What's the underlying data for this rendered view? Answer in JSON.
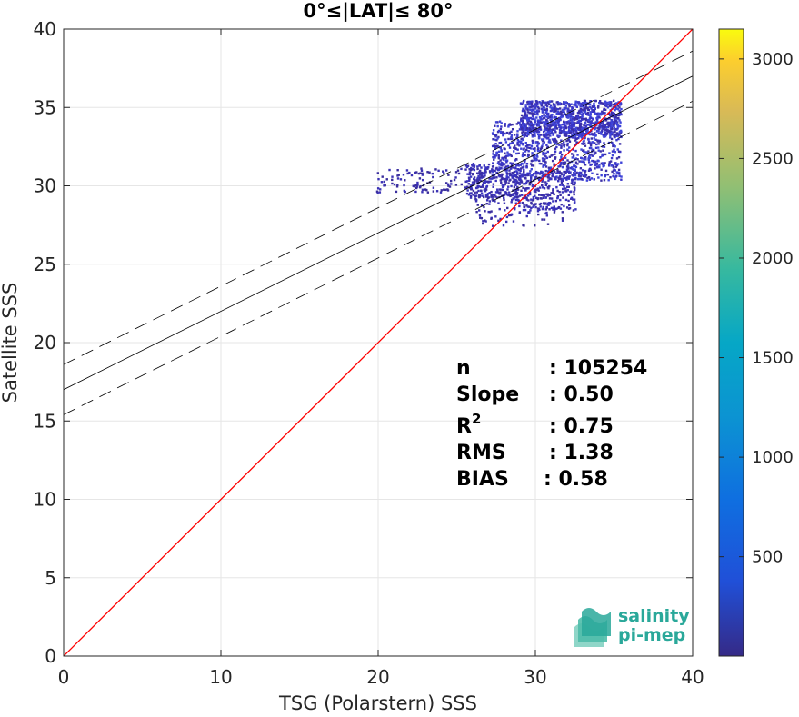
{
  "chart_data": {
    "type": "heatmap",
    "title": "0°≤|LAT|≤ 80°",
    "xlabel": "TSG (Polarstern) SSS",
    "ylabel": "Satellite SSS",
    "xlim": [
      0,
      40
    ],
    "ylim": [
      0,
      40
    ],
    "xticks": [
      0,
      10,
      20,
      30,
      40
    ],
    "yticks": [
      0,
      5,
      10,
      15,
      20,
      25,
      30,
      35,
      40
    ],
    "grid": true,
    "colorbar": {
      "min": 1,
      "max": 3150,
      "ticks": [
        500,
        1000,
        1500,
        2000,
        2500,
        3000
      ],
      "colormap": "parula"
    },
    "lines": {
      "identity": {
        "slope": 1,
        "intercept": 0,
        "color": "#ff0000"
      },
      "fit": {
        "slope": 0.5,
        "intercept": 17.0,
        "color": "#000000"
      },
      "fit_upper": {
        "slope": 0.5,
        "intercept": 18.6,
        "style": "dashed"
      },
      "fit_lower": {
        "slope": 0.5,
        "intercept": 15.4,
        "style": "dashed"
      }
    },
    "density_regions": [
      {
        "x": [
          27.2,
          35.4
        ],
        "y": [
          30.4,
          34.2
        ],
        "density": "high"
      },
      {
        "x": [
          29.0,
          35.4
        ],
        "y": [
          33.2,
          35.5
        ],
        "density": "high"
      },
      {
        "x": [
          25.5,
          29.0
        ],
        "y": [
          29.3,
          31.5
        ],
        "density": "medium"
      },
      {
        "x": [
          19.8,
          26.5
        ],
        "y": [
          29.6,
          31.2
        ],
        "density": "low"
      },
      {
        "x": [
          25.8,
          31.8
        ],
        "y": [
          27.5,
          29.6
        ],
        "density": "low"
      },
      {
        "x": [
          28.5,
          32.5
        ],
        "y": [
          28.5,
          31.0
        ],
        "density": "medium"
      }
    ],
    "stats": [
      {
        "name": "n",
        "sep": ": ",
        "value": "105254"
      },
      {
        "name": "Slope",
        "sep": ": ",
        "value": "0.50"
      },
      {
        "name": "R",
        "sup": "2",
        "sep": ": ",
        "value": "0.75"
      },
      {
        "name": "RMS",
        "sep": ": ",
        "value": "1.38"
      },
      {
        "name": "BIAS",
        "sep": ": ",
        "value": "0.58"
      }
    ]
  },
  "logo": {
    "line1": "salinity",
    "line2": "pi-mep"
  }
}
